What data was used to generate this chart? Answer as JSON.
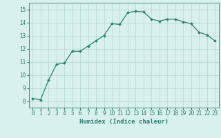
{
  "x": [
    0,
    1,
    2,
    3,
    4,
    5,
    6,
    7,
    8,
    9,
    10,
    11,
    12,
    13,
    14,
    15,
    16,
    17,
    18,
    19,
    20,
    21,
    22,
    23
  ],
  "y": [
    8.2,
    8.1,
    9.6,
    10.8,
    10.9,
    11.8,
    11.8,
    12.2,
    12.6,
    13.0,
    13.9,
    13.85,
    14.75,
    14.85,
    14.8,
    14.25,
    14.1,
    14.25,
    14.25,
    14.05,
    13.9,
    13.25,
    13.05,
    12.6
  ],
  "xlim": [
    -0.5,
    23.5
  ],
  "ylim": [
    7.5,
    15.5
  ],
  "yticks": [
    8,
    9,
    10,
    11,
    12,
    13,
    14,
    15
  ],
  "xticks": [
    0,
    1,
    2,
    3,
    4,
    5,
    6,
    7,
    8,
    9,
    10,
    11,
    12,
    13,
    14,
    15,
    16,
    17,
    18,
    19,
    20,
    21,
    22,
    23
  ],
  "xlabel": "Humidex (Indice chaleur)",
  "line_color": "#2e7d6e",
  "marker": "D",
  "marker_size": 1.8,
  "bg_color": "#d8f0ee",
  "grid_color": "#b8dbd8",
  "tick_color": "#2e7d6e",
  "label_color": "#2e7d6e",
  "font_family": "monospace",
  "tick_fontsize": 5.5,
  "xlabel_fontsize": 6.5
}
